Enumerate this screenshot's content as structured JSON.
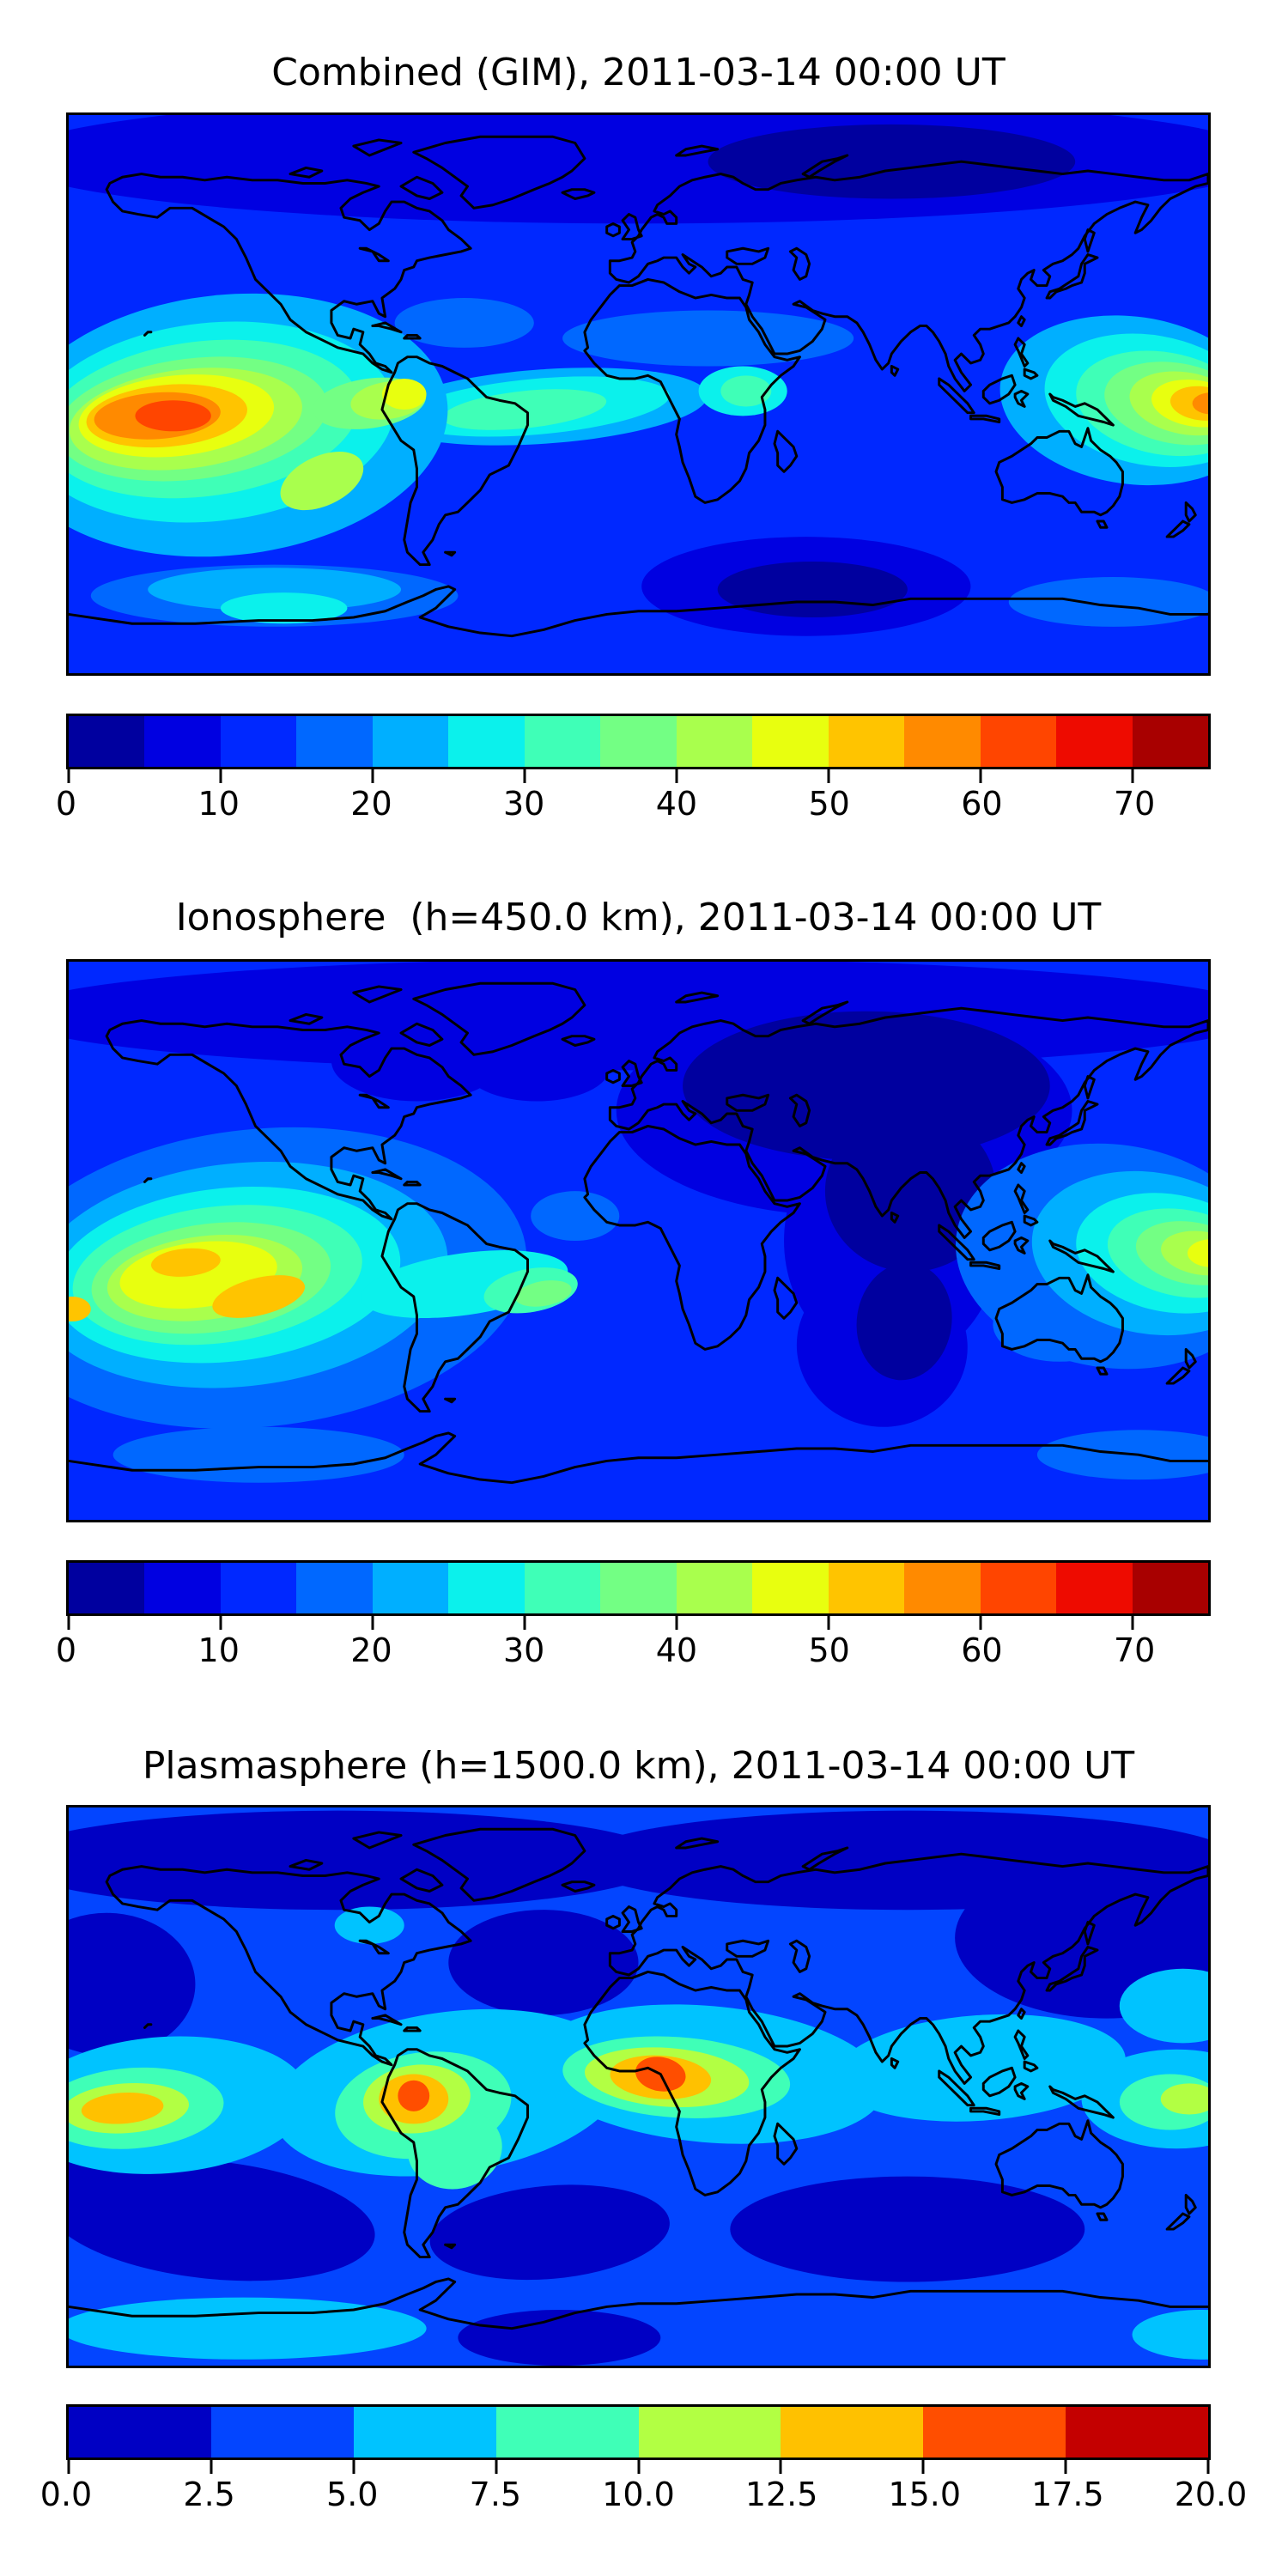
{
  "figure": {
    "background": "#ffffff",
    "text_color": "#000000",
    "coastline_color": "#000000"
  },
  "panels": [
    {
      "id": "combined",
      "title": "Combined (GIM), 2011-03-14 00:00 UT",
      "colorbar": {
        "orientation": "horizontal",
        "vmin": 0,
        "vmax": 75,
        "segment_colors": [
          "#00009F",
          "#0000E1",
          "#0028FF",
          "#0068FF",
          "#00AFFF",
          "#0BF1EC",
          "#3FFFB7",
          "#73FF84",
          "#A9FF4D",
          "#E8FF0F",
          "#FFC400",
          "#FF8A00",
          "#FF4500",
          "#EE0B00",
          "#A80000"
        ],
        "ticks": [
          {
            "value": 0,
            "label": "0"
          },
          {
            "value": 10,
            "label": "10"
          },
          {
            "value": 20,
            "label": "20"
          },
          {
            "value": 30,
            "label": "30"
          },
          {
            "value": 40,
            "label": "40"
          },
          {
            "value": 50,
            "label": "50"
          },
          {
            "value": 60,
            "label": "60"
          },
          {
            "value": 70,
            "label": "70"
          }
        ]
      }
    },
    {
      "id": "ionosphere",
      "title": "Ionosphere  (h=450.0 km), 2011-03-14 00:00 UT",
      "colorbar": {
        "orientation": "horizontal",
        "vmin": 0,
        "vmax": 75,
        "segment_colors": [
          "#00009F",
          "#0000E1",
          "#0028FF",
          "#0068FF",
          "#00AFFF",
          "#0BF1EC",
          "#3FFFB7",
          "#73FF84",
          "#A9FF4D",
          "#E8FF0F",
          "#FFC400",
          "#FF8A00",
          "#FF4500",
          "#EE0B00",
          "#A80000"
        ],
        "ticks": [
          {
            "value": 0,
            "label": "0"
          },
          {
            "value": 10,
            "label": "10"
          },
          {
            "value": 20,
            "label": "20"
          },
          {
            "value": 30,
            "label": "30"
          },
          {
            "value": 40,
            "label": "40"
          },
          {
            "value": 50,
            "label": "50"
          },
          {
            "value": 60,
            "label": "60"
          },
          {
            "value": 70,
            "label": "70"
          }
        ]
      }
    },
    {
      "id": "plasmasphere",
      "title": "Plasmasphere (h=1500.0 km), 2011-03-14 00:00 UT",
      "colorbar": {
        "orientation": "horizontal",
        "vmin": 0,
        "vmax": 20,
        "segment_colors": [
          "#0000C4",
          "#0345FF",
          "#00C3FF",
          "#3FFFB7",
          "#B2FF43",
          "#FFC100",
          "#FF4E00",
          "#C40000"
        ],
        "ticks": [
          {
            "value": 0,
            "label": "0.0"
          },
          {
            "value": 2.5,
            "label": "2.5"
          },
          {
            "value": 5,
            "label": "5.0"
          },
          {
            "value": 7.5,
            "label": "7.5"
          },
          {
            "value": 10,
            "label": "10.0"
          },
          {
            "value": 12.5,
            "label": "12.5"
          },
          {
            "value": 15,
            "label": "15.0"
          },
          {
            "value": 17.5,
            "label": "17.5"
          },
          {
            "value": 20,
            "label": "20.0"
          }
        ]
      }
    }
  ],
  "chart_data": [
    {
      "type": "heatmap",
      "title": "Combined (GIM), 2011-03-14 00:00 UT",
      "projection": "equirectangular world map, lon -180..180, lat -90..90, black coastlines",
      "colormap": "jet, 15 discrete filled-contour bands",
      "value_range": [
        0,
        75
      ],
      "colorbar_ticks": [
        0,
        10,
        20,
        30,
        40,
        50,
        60,
        70
      ],
      "features": [
        {
          "desc": "primary equatorial maximum over central-eastern Pacific (local noon sector)",
          "lon": -147,
          "lat": -7,
          "peak_value": 65
        },
        {
          "desc": "secondary maximum at far western Pacific near right map edge",
          "lon": 178,
          "lat": -3,
          "peak_value": 57
        },
        {
          "desc": "moderate enhancement over northwestern South America",
          "lon": -74,
          "lat": 0,
          "peak_value": 48
        },
        {
          "desc": "moderate equatorial band across Atlantic and equatorial Africa",
          "lon": -30,
          "lat": -4,
          "peak_value": 30
        },
        {
          "desc": "minimum over Arctic Siberia",
          "lon": 80,
          "lat": 75,
          "value": 4
        },
        {
          "desc": "minimum over southern Indian Ocean",
          "lon": 55,
          "lat": -63,
          "value": 4
        }
      ]
    },
    {
      "type": "heatmap",
      "title": "Ionosphere  (h=450.0 km), 2011-03-14 00:00 UT",
      "projection": "equirectangular world map, lon -180..180, lat -90..90, black coastlines",
      "colormap": "jet, 15 discrete filled-contour bands",
      "value_range": [
        0,
        75
      ],
      "colorbar_ticks": [
        0,
        10,
        20,
        30,
        40,
        50,
        60,
        70
      ],
      "features": [
        {
          "desc": "primary maximum over eastern Pacific, yellow-gold core",
          "lon": -135,
          "lat": -11,
          "peak_value": 52
        },
        {
          "desc": "secondary maximum at far western Pacific near right map edge",
          "lon": 180,
          "lat": -4,
          "peak_value": 48
        },
        {
          "desc": "broad deep minimum (night side) over Europe, central Asia, India and southern Indian Ocean",
          "lon": 80,
          "lat": 25,
          "value": 3
        },
        {
          "desc": "weak turquoise patch east of Brazil",
          "lon": -30,
          "lat": -17,
          "peak_value": 32
        }
      ]
    },
    {
      "type": "heatmap",
      "title": "Plasmasphere (h=1500.0 km), 2011-03-14 00:00 UT",
      "projection": "equirectangular world map, lon -180..180, lat -90..90, black coastlines",
      "colormap": "jet, 8 discrete filled-contour bands",
      "value_range": [
        0,
        20
      ],
      "colorbar_ticks": [
        0,
        2.5,
        5,
        7.5,
        10,
        12.5,
        15,
        17.5,
        20
      ],
      "features": [
        {
          "desc": "strongest maximum over west-central Africa",
          "lon": 7,
          "lat": 4,
          "peak_value": 17
        },
        {
          "desc": "maximum over northwestern South America",
          "lon": -71,
          "lat": -3,
          "peak_value": 16
        },
        {
          "desc": "gold maximum in central Pacific near left map edge",
          "lon": -163,
          "lat": -7,
          "peak_value": 14
        },
        {
          "desc": "weak yellow-green patch at far western Pacific",
          "lon": 174,
          "lat": -4,
          "peak_value": 11
        },
        {
          "desc": "continuous cyan equatorial band around the globe",
          "lat": 0,
          "value": 6
        },
        {
          "desc": "dark minima at high latitudes and mid-latitude oceans",
          "value": 1.5
        }
      ]
    }
  ]
}
